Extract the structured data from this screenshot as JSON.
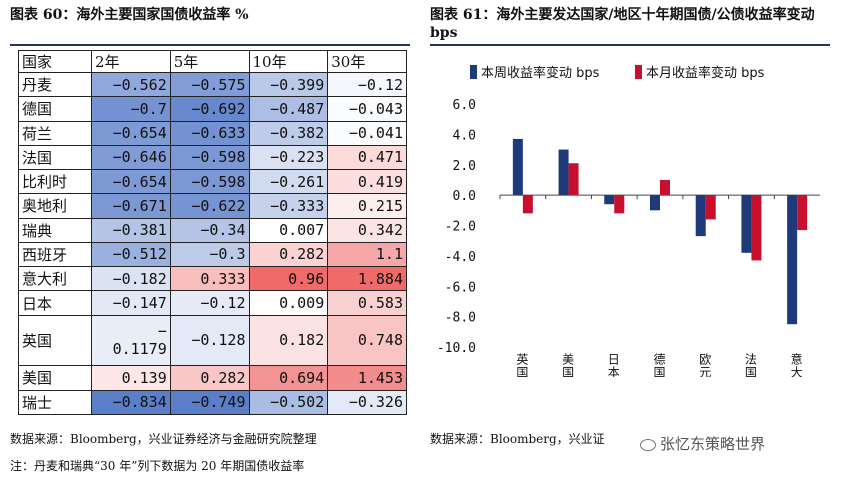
{
  "left": {
    "title": "图表 60：海外主要国家国债收益率 %",
    "headers": [
      "国家",
      "2年",
      "5年",
      "10年",
      "30年"
    ],
    "rows": [
      {
        "country": "丹麦",
        "values": [
          "−0.562",
          "−0.575",
          "−0.399",
          "−0.12"
        ]
      },
      {
        "country": "德国",
        "values": [
          "−0.7",
          "−0.692",
          "−0.487",
          "−0.043"
        ]
      },
      {
        "country": "荷兰",
        "values": [
          "−0.654",
          "−0.633",
          "−0.382",
          "−0.041"
        ]
      },
      {
        "country": "法国",
        "values": [
          "−0.646",
          "−0.598",
          "−0.223",
          "0.471"
        ]
      },
      {
        "country": "比利时",
        "values": [
          "−0.654",
          "−0.598",
          "−0.261",
          "0.419"
        ]
      },
      {
        "country": "奥地利",
        "values": [
          "−0.671",
          "−0.622",
          "−0.333",
          "0.215"
        ]
      },
      {
        "country": "瑞典",
        "values": [
          "−0.381",
          "−0.34",
          "0.007",
          "0.342"
        ]
      },
      {
        "country": "西班牙",
        "values": [
          "−0.512",
          "−0.3",
          "0.282",
          "1.1"
        ]
      },
      {
        "country": "意大利",
        "values": [
          "−0.182",
          "0.333",
          "0.96",
          "1.884"
        ]
      },
      {
        "country": "日本",
        "values": [
          "−0.147",
          "−0.12",
          "0.009",
          "0.583"
        ]
      },
      {
        "country": "英国",
        "values": [
          "−\n0.1179",
          "−0.128",
          "0.182",
          "0.748"
        ]
      },
      {
        "country": "美国",
        "values": [
          "0.139",
          "0.282",
          "0.694",
          "1.453"
        ]
      },
      {
        "country": "瑞士",
        "values": [
          "−0.834",
          "−0.749",
          "−0.502",
          "−0.326"
        ]
      }
    ],
    "source": "数据来源：Bloomberg，兴业证券经济与金融研究院整理",
    "note": "注：丹麦和瑞典“30 年”列下数据为 20 年期国债收益率"
  },
  "right": {
    "title": "图表 61：海外主要发达国家/地区十年期国债/公债收益率变动 bps",
    "source": "数据来源：Bloomberg，兴业证",
    "watermark": "张忆东策略世界"
  },
  "colors": {
    "weekly": "#1f3a7a",
    "monthly": "#c8102e",
    "heat_neg": "#5b7ec9",
    "heat_pos": "#f06a6a",
    "rule": "#1f3864"
  },
  "chart_data": {
    "type": "bar",
    "title": "海外主要发达国家/地区十年期国债/公债收益率变动 bps",
    "categories": [
      "英国",
      "美国",
      "日本",
      "德国",
      "欧元区",
      "法国",
      "意大利"
    ],
    "series": [
      {
        "name": "本周收益率变动 bps",
        "values": [
          3.7,
          3.0,
          -0.6,
          -1.0,
          -2.7,
          -3.8,
          -8.5
        ]
      },
      {
        "name": "本月收益率变动 bps",
        "values": [
          -1.2,
          2.1,
          -1.2,
          1.0,
          -1.6,
          -4.3,
          -2.3
        ]
      }
    ],
    "ylim": [
      -10,
      6
    ],
    "yticks": [
      "6.0",
      "4.0",
      "2.0",
      "0.0",
      "-2.0",
      "-4.0",
      "-6.0",
      "-8.0",
      "-10.0"
    ],
    "legend": "top",
    "xlabel": "",
    "ylabel": ""
  }
}
